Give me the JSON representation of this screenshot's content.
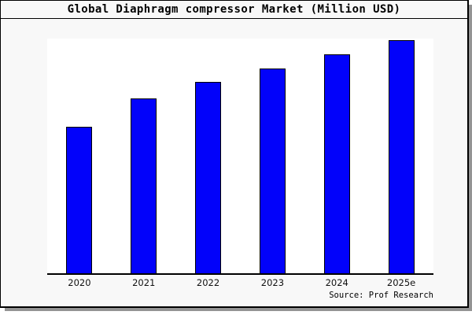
{
  "header": {
    "title": "Global Diaphragm compressor Market (Million USD)"
  },
  "footer": {
    "source": "Source: Prof Research"
  },
  "colors": {
    "bar_fill": "#0202fa",
    "bar_border": "#000000",
    "frame_background": "#f8f8f8",
    "plot_background": "#ffffff",
    "frame_border": "#000000",
    "shadow": "#949494",
    "text": "#000000"
  },
  "chart_data": {
    "type": "bar",
    "title": "Global Diaphragm compressor Market (Million USD)",
    "categories": [
      "2020",
      "2021",
      "2022",
      "2023",
      "2024",
      "2025e"
    ],
    "values": [
      0.63,
      0.75,
      0.82,
      0.88,
      0.94,
      1.0
    ],
    "values_note": "No numeric y-axis is shown in the chart; values are bar heights normalized to the tallest bar (2025e = 1.0)",
    "xlabel": "",
    "ylabel": "",
    "y_axis_visible": false,
    "grid": false,
    "legend": "none",
    "bar_color": "#0202fa",
    "bar_border_color": "#000000",
    "source": "Source: Prof Research"
  }
}
